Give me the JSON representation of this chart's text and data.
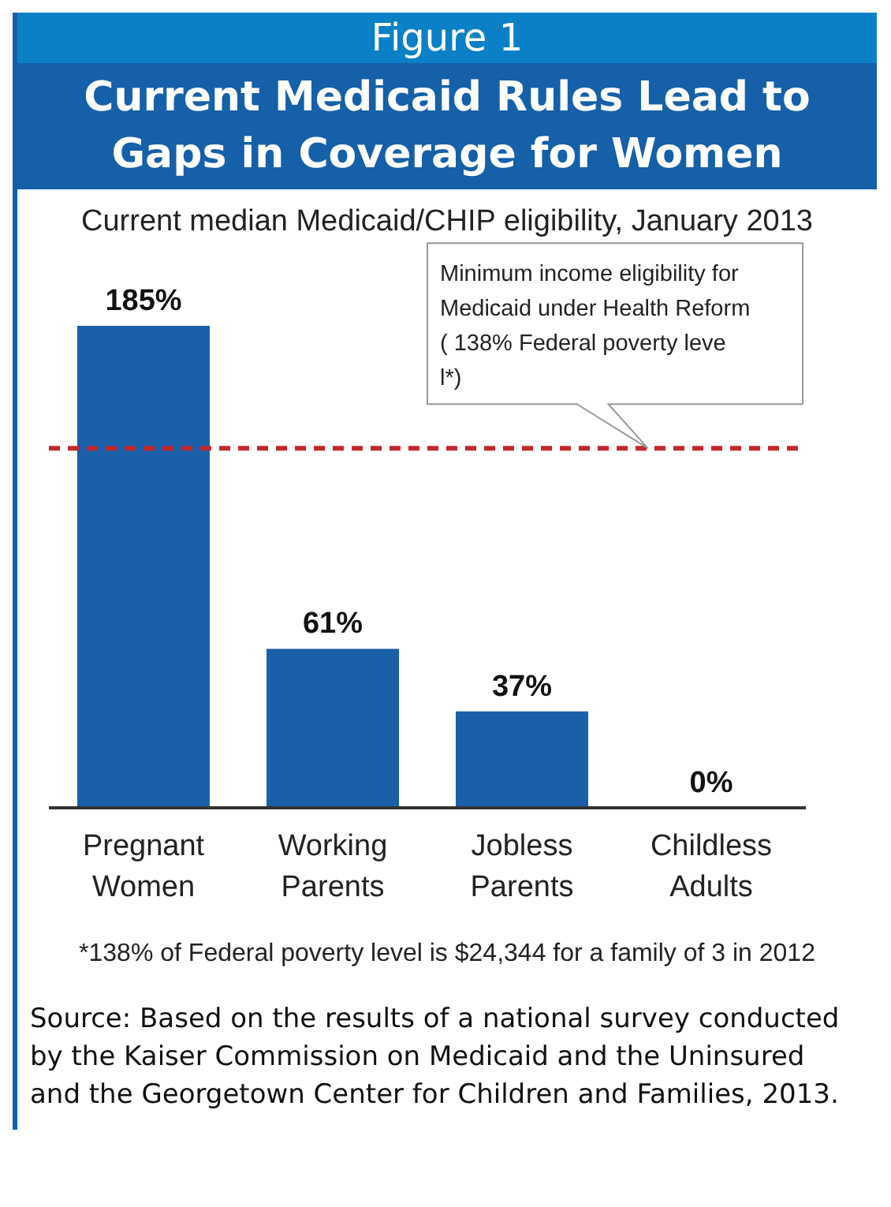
{
  "chart_data": {
    "type": "bar",
    "title": "Current Medicaid Rules Lead to Gaps in Coverage for Women",
    "subtitle": "Current median Medicaid/CHIP eligibility, January 2013",
    "categories": [
      "Pregnant Women",
      "Working Parents",
      "Jobless Parents",
      "Childless Adults"
    ],
    "values": [
      185,
      61,
      37,
      0
    ],
    "color": "#1a5fa8",
    "value_labels": [
      "185%",
      "61%",
      "37%",
      "0%"
    ],
    "ref_lines": [
      {
        "axis": "y",
        "value": 138,
        "label": "Minimum income eligibility for Medicaid under Health Reform ( 138% Federal poverty leve l*)",
        "color": "#c0282d",
        "line_style": "dashed"
      }
    ],
    "annotations": [
      "Figure 1",
      "*138% of Federal poverty level is $24,344 for a family of 3 in 2012",
      "Source: Based on the results of a national survey conducted by the Kaiser Commission on Medicaid and the Uninsured and the Georgetown Center for Children and Families, 2013."
    ]
  }
}
